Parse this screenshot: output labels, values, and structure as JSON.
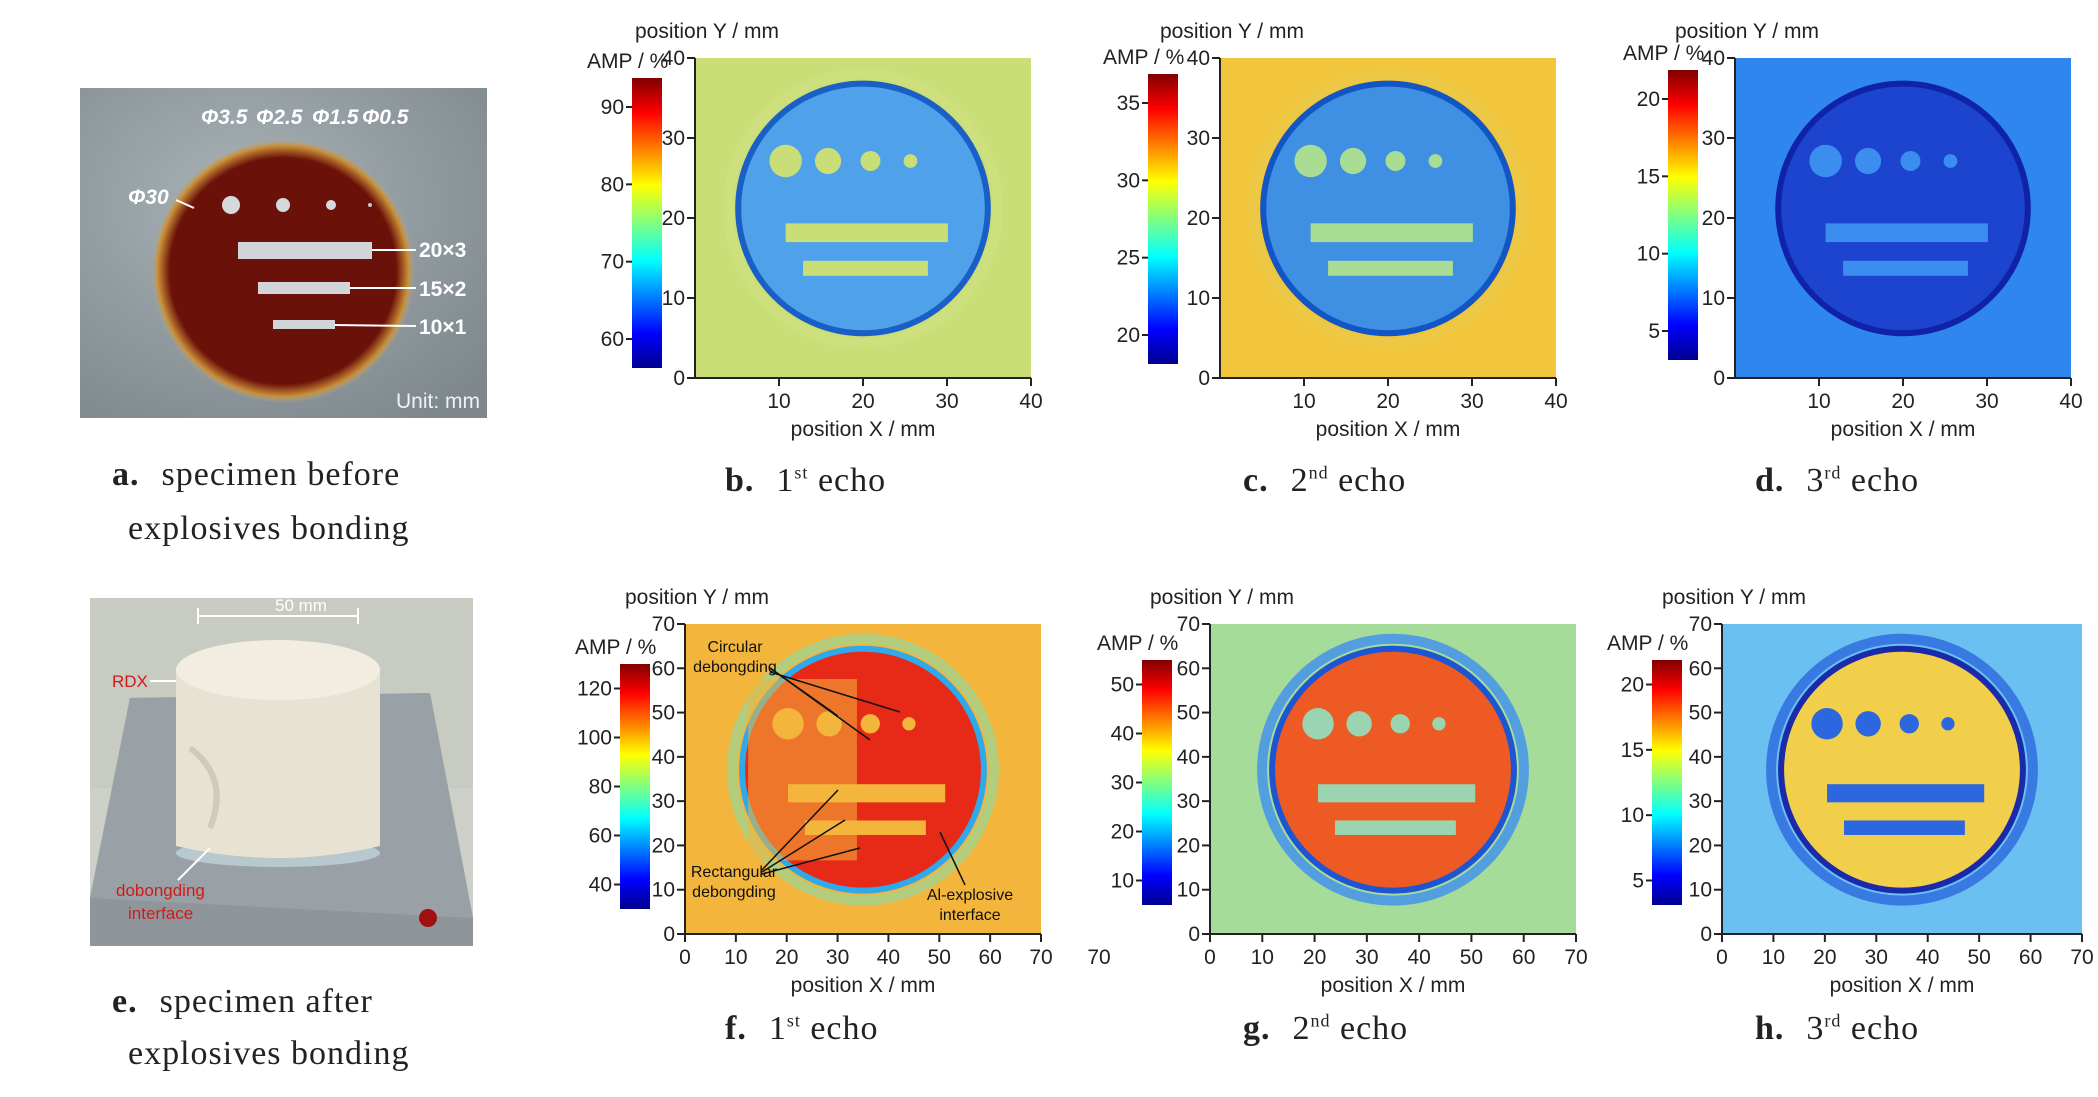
{
  "colors": {
    "bg": "#ffffff",
    "plate": "#8e979c",
    "coating": "#7a160c",
    "ring": "#c9a343",
    "text": "#222222"
  },
  "photo_a": {
    "holes": [
      "Φ3.5",
      "Φ2.5",
      "Φ1.5",
      "Φ0.5"
    ],
    "outer": "Φ30",
    "slots": [
      "20×3",
      "15×2",
      "10×1"
    ],
    "unit": "Unit: mm"
  },
  "photo_e": {
    "width_label": "50 mm",
    "rdx_label": "RDX",
    "interface_label_1": "dobongding",
    "interface_label_2": "interface"
  },
  "captions": {
    "a": {
      "letter": "a.",
      "line1": "specimen before",
      "line2": "explosives bonding"
    },
    "b": {
      "letter": "b.",
      "num": "1",
      "sup": "st",
      "word": "echo"
    },
    "c": {
      "letter": "c.",
      "num": "2",
      "sup": "nd",
      "word": "echo"
    },
    "d": {
      "letter": "d.",
      "num": "3",
      "sup": "rd",
      "word": "echo"
    },
    "e": {
      "letter": "e.",
      "line1": "specimen after",
      "line2": "explosives bonding"
    },
    "f": {
      "letter": "f.",
      "num": "1",
      "sup": "st",
      "word": "echo"
    },
    "g": {
      "letter": "g.",
      "num": "2",
      "sup": "nd",
      "word": "echo"
    },
    "h": {
      "letter": "h.",
      "num": "3",
      "sup": "rd",
      "word": "echo"
    }
  },
  "annotations_f": {
    "circ_1": "Circular",
    "circ_2": "debongding",
    "rect_1": "Rectangular",
    "rect_2": "debongding",
    "al_1": "Al-explosive",
    "al_2": "interface"
  },
  "chart_data": [
    {
      "id": "b",
      "type": "heatmap",
      "xlabel": "position X / mm",
      "ylabel": "position Y / mm",
      "colorbar_label": "AMP / %",
      "xticks": [
        "10",
        "20",
        "30",
        "40"
      ],
      "yticks": [
        "0",
        "10",
        "20",
        "30",
        "40"
      ],
      "cticks": [
        "60",
        "70",
        "80",
        "90"
      ],
      "xlim": [
        0,
        40
      ],
      "ylim": [
        0,
        40
      ]
    },
    {
      "id": "c",
      "type": "heatmap",
      "xlabel": "position X / mm",
      "ylabel": "position Y / mm",
      "colorbar_label": "AMP / %",
      "xticks": [
        "10",
        "20",
        "30",
        "40"
      ],
      "yticks": [
        "0",
        "10",
        "20",
        "30",
        "40"
      ],
      "cticks": [
        "20",
        "25",
        "30",
        "35"
      ],
      "xlim": [
        0,
        40
      ],
      "ylim": [
        0,
        40
      ]
    },
    {
      "id": "d",
      "type": "heatmap",
      "xlabel": "position X / mm",
      "ylabel": "position Y / mm",
      "colorbar_label": "AMP / %",
      "xticks": [
        "10",
        "20",
        "30",
        "40"
      ],
      "yticks": [
        "0",
        "10",
        "20",
        "30",
        "40"
      ],
      "cticks": [
        "5",
        "10",
        "15",
        "20"
      ],
      "xlim": [
        0,
        40
      ],
      "ylim": [
        0,
        40
      ]
    },
    {
      "id": "f",
      "type": "heatmap",
      "xlabel": "position X / mm",
      "ylabel": "position Y / mm",
      "colorbar_label": "AMP / %",
      "xticks": [
        "0",
        "10",
        "20",
        "30",
        "40",
        "50",
        "60",
        "70"
      ],
      "extra_xtick": "70",
      "yticks": [
        "0",
        "10",
        "20",
        "30",
        "40",
        "50",
        "60",
        "70"
      ],
      "cticks": [
        "40",
        "60",
        "80",
        "100",
        "120"
      ],
      "xlim": [
        0,
        70
      ],
      "ylim": [
        0,
        70
      ]
    },
    {
      "id": "g",
      "type": "heatmap",
      "xlabel": "position X / mm",
      "ylabel": "position Y / mm",
      "colorbar_label": "AMP / %",
      "xticks": [
        "0",
        "10",
        "20",
        "30",
        "40",
        "50",
        "60",
        "70"
      ],
      "yticks": [
        "0",
        "10",
        "20",
        "30",
        "40",
        "50",
        "60",
        "70"
      ],
      "cticks": [
        "10",
        "20",
        "30",
        "40",
        "50"
      ],
      "xlim": [
        0,
        70
      ],
      "ylim": [
        0,
        70
      ]
    },
    {
      "id": "h",
      "type": "heatmap",
      "xlabel": "position X / mm",
      "ylabel": "position Y / mm",
      "colorbar_label": "AMP / %",
      "xticks": [
        "0",
        "10",
        "20",
        "30",
        "40",
        "50",
        "60",
        "70"
      ],
      "yticks": [
        "0",
        "10",
        "20",
        "30",
        "40",
        "50",
        "60",
        "70"
      ],
      "cticks": [
        "5",
        "10",
        "15",
        "20"
      ],
      "xlim": [
        0,
        70
      ],
      "ylim": [
        0,
        70
      ]
    }
  ]
}
